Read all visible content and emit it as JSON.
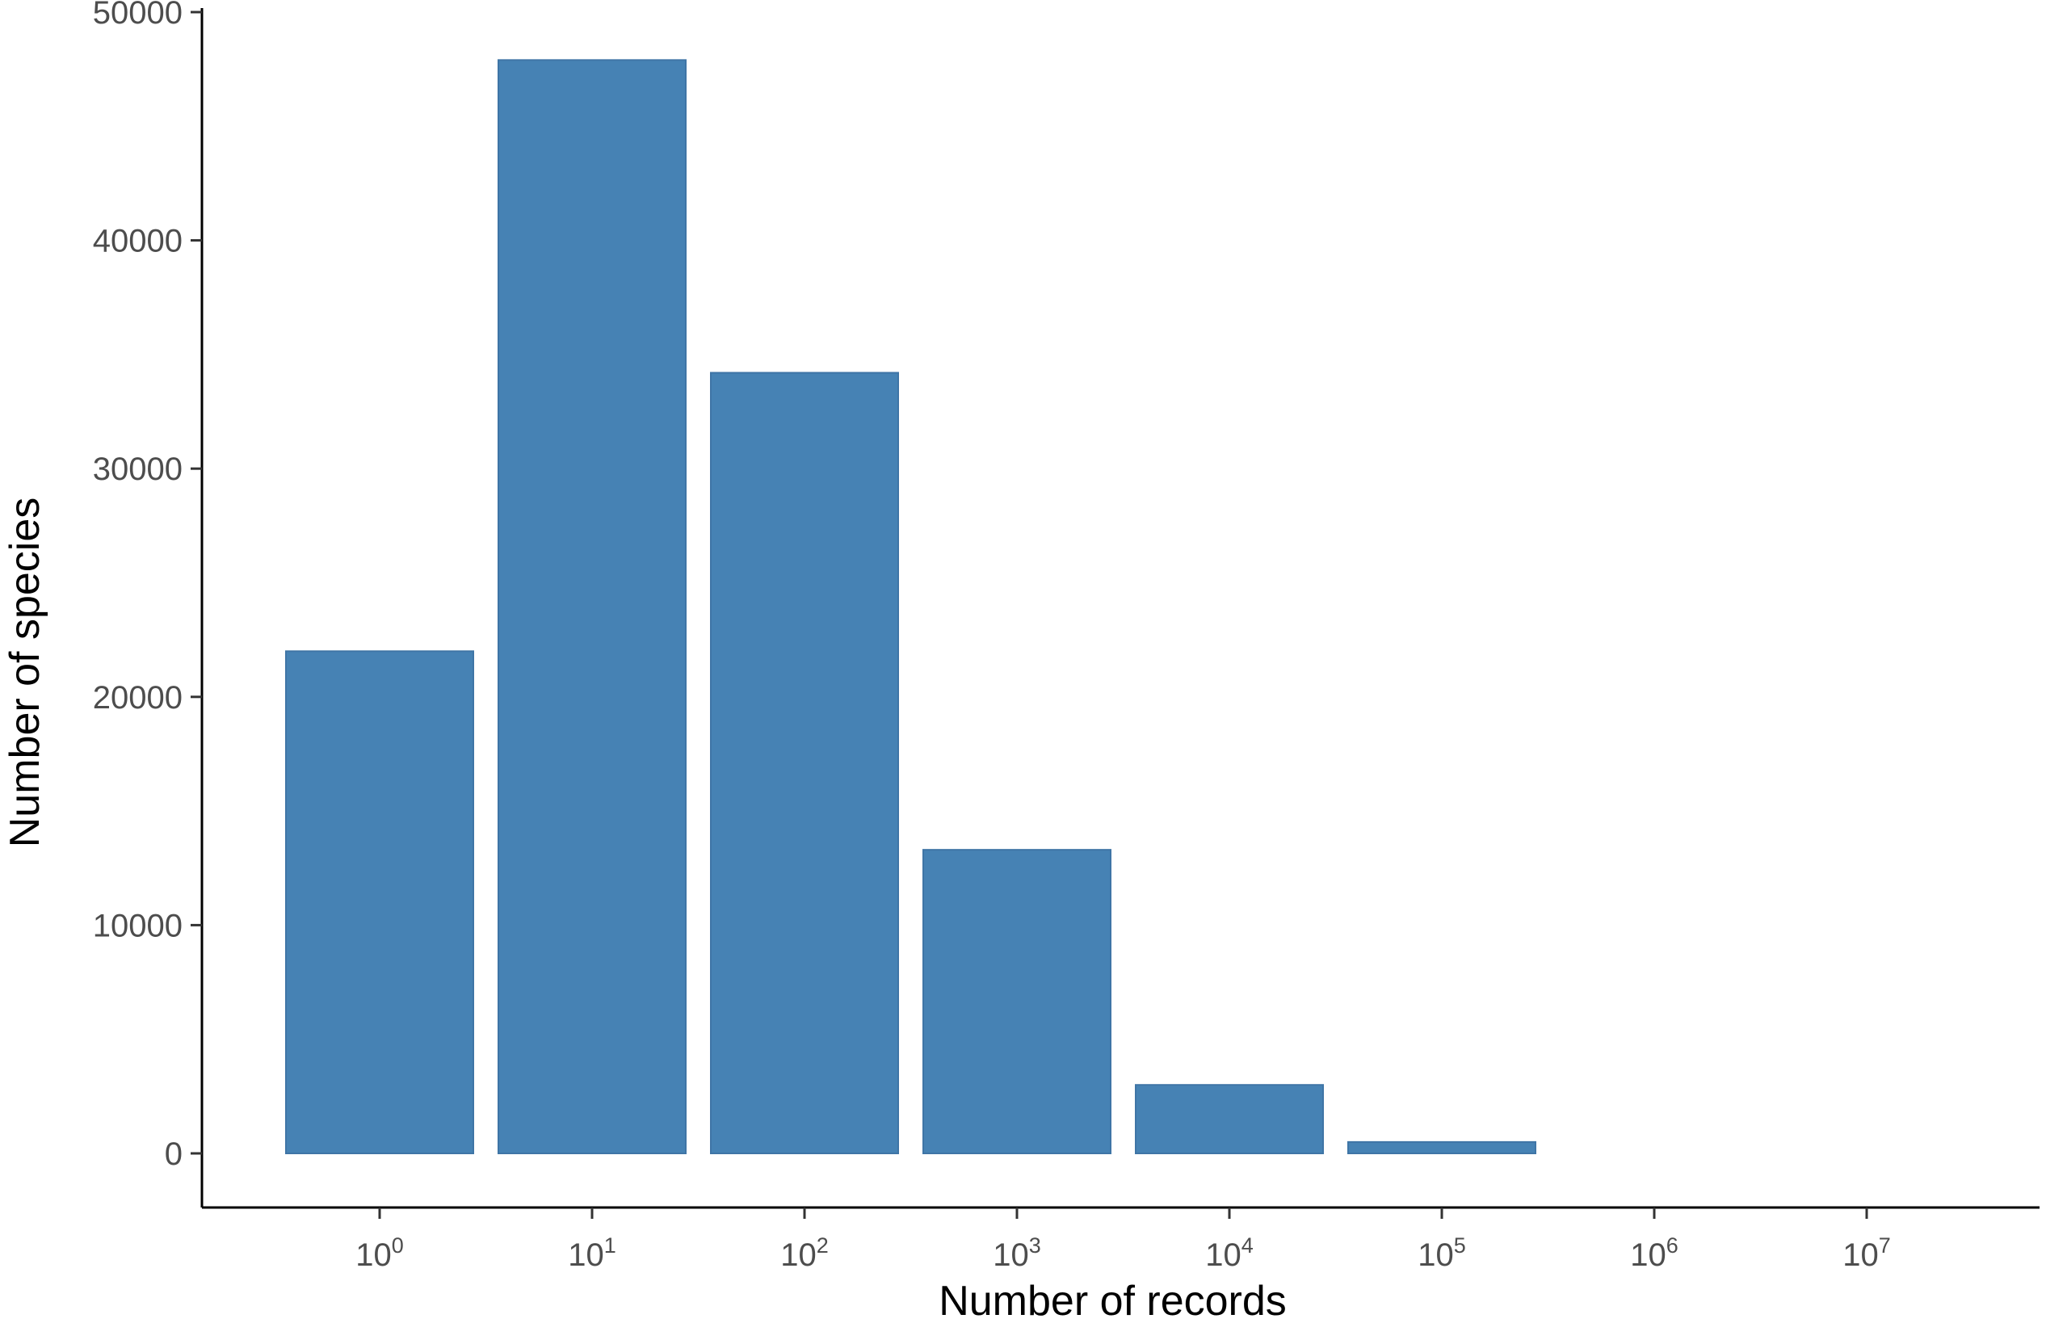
{
  "chart_data": {
    "type": "bar",
    "title": "",
    "xlabel": "Number of records",
    "ylabel": "Number of species",
    "x_scale": "log10",
    "categories": [
      "10^0",
      "10^1",
      "10^2",
      "10^3",
      "10^4",
      "10^5",
      "10^6",
      "10^7"
    ],
    "x_tick_labels": [
      {
        "base": "10",
        "exp": "0"
      },
      {
        "base": "10",
        "exp": "1"
      },
      {
        "base": "10",
        "exp": "2"
      },
      {
        "base": "10",
        "exp": "3"
      },
      {
        "base": "10",
        "exp": "4"
      },
      {
        "base": "10",
        "exp": "5"
      },
      {
        "base": "10",
        "exp": "6"
      },
      {
        "base": "10",
        "exp": "7"
      }
    ],
    "values": [
      22000,
      47900,
      34200,
      13300,
      3000,
      500,
      0,
      0
    ],
    "y_ticks": [
      "0",
      "10000",
      "20000",
      "30000",
      "40000",
      "50000"
    ],
    "ylim": [
      0,
      50000
    ],
    "grid": false,
    "legend": "none",
    "bar_color": "#4682B4"
  }
}
